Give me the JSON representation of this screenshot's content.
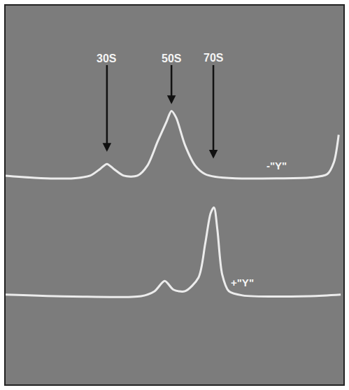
{
  "chart_data": {
    "type": "line",
    "series": [
      {
        "name": "-\"Y\"",
        "color": "#ececec",
        "x": [
          0,
          4,
          12,
          20,
          25,
          28,
          30,
          32,
          35,
          39,
          42,
          45,
          47.7,
          49.1,
          50.5,
          53.1,
          56.1,
          59.1,
          62.1,
          68.1,
          80.2,
          90.2,
          95.2,
          97.2,
          98.6
        ],
        "values": [
          55.1,
          54.8,
          54.4,
          54.4,
          55.1,
          56.9,
          58.2,
          56.9,
          55.1,
          55.1,
          57.8,
          64.1,
          69.5,
          72.2,
          70.4,
          63.2,
          57.8,
          55.5,
          54.8,
          54.4,
          54.4,
          54.6,
          55.5,
          58.7,
          65.9
        ]
      },
      {
        "name": "+\"Y\"",
        "color": "#ececec",
        "x": [
          0,
          20,
          40.1,
          44.1,
          47.1,
          49.7,
          53.1,
          57.1,
          59.1,
          60.7,
          61.7,
          62.7,
          64.1,
          66.1,
          70.1,
          90.2,
          99.2
        ],
        "values": [
          23.7,
          23.2,
          23.3,
          24.6,
          27.3,
          25.0,
          24.6,
          28.2,
          37.2,
          45.2,
          46.7,
          40.8,
          29.1,
          24.6,
          23.5,
          23.3,
          23.7
        ]
      }
    ],
    "xlim": [
      0,
      100
    ],
    "ylim": [
      0,
      100
    ],
    "tick_labels": false,
    "grid": false,
    "annotations": [
      {
        "text": "30S",
        "x": 30,
        "y": 61.4
      },
      {
        "text": "50S",
        "x": 49.1,
        "y": 74.0
      },
      {
        "text": "70S",
        "x": 61.5,
        "y": 59.6
      }
    ]
  }
}
